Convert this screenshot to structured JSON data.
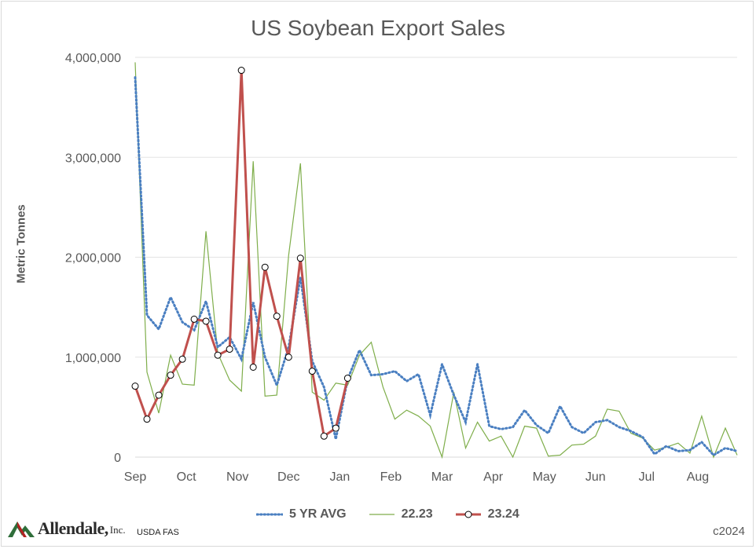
{
  "chart_data": {
    "type": "line",
    "title": "US Soybean Export Sales",
    "ylabel": "Metric Tonnes",
    "xlabel": "",
    "ylim": [
      0,
      4000000
    ],
    "yticks": [
      0,
      1000000,
      2000000,
      3000000,
      4000000
    ],
    "ytick_labels": [
      "0",
      "1,000,000",
      "2,000,000",
      "3,000,000",
      "4,000,000"
    ],
    "x_tick_labels": [
      "Sep",
      "Oct",
      "Nov",
      "Dec",
      "Jan",
      "Feb",
      "Mar",
      "Apr",
      "May",
      "Jun",
      "Jul",
      "Aug"
    ],
    "weeks_per_year": 52,
    "grid": true,
    "legend_position": "bottom",
    "series": [
      {
        "name": "5 YR AVG",
        "style": "dotted",
        "color": "#4a7fc1",
        "values": [
          3800000,
          1420000,
          1280000,
          1600000,
          1350000,
          1270000,
          1560000,
          1100000,
          1200000,
          980000,
          1550000,
          1000000,
          720000,
          1100000,
          1800000,
          960000,
          700000,
          180000,
          780000,
          1070000,
          820000,
          830000,
          860000,
          760000,
          830000,
          420000,
          930000,
          620000,
          350000,
          930000,
          310000,
          280000,
          300000,
          470000,
          320000,
          240000,
          510000,
          300000,
          240000,
          350000,
          370000,
          300000,
          260000,
          200000,
          30000,
          110000,
          60000,
          70000,
          150000,
          20000,
          90000,
          60000
        ]
      },
      {
        "name": "22.23",
        "style": "solid",
        "color": "#7fae4b",
        "values": [
          3950000,
          850000,
          440000,
          1020000,
          730000,
          720000,
          2260000,
          1040000,
          770000,
          660000,
          2960000,
          610000,
          620000,
          2020000,
          2940000,
          650000,
          570000,
          740000,
          720000,
          1020000,
          1150000,
          700000,
          380000,
          470000,
          410000,
          310000,
          0,
          650000,
          90000,
          350000,
          160000,
          210000,
          0,
          310000,
          290000,
          10000,
          20000,
          120000,
          130000,
          210000,
          480000,
          460000,
          240000,
          190000,
          70000,
          100000,
          140000,
          40000,
          410000,
          0,
          290000,
          20000
        ]
      },
      {
        "name": "23.24",
        "style": "solid-markers",
        "color": "#c0504d",
        "values": [
          710000,
          380000,
          620000,
          820000,
          980000,
          1380000,
          1360000,
          1020000,
          1080000,
          3870000,
          900000,
          1900000,
          1410000,
          1000000,
          1990000,
          860000,
          210000,
          290000,
          790000
        ]
      }
    ]
  },
  "legend": {
    "avg_label": "5 YR AVG",
    "prev_label": "22.23",
    "curr_label": "23.24"
  },
  "footer": {
    "logo_text": "Allendale,",
    "logo_inc": "Inc.",
    "source": "USDA FAS",
    "copyright": "c2024"
  }
}
